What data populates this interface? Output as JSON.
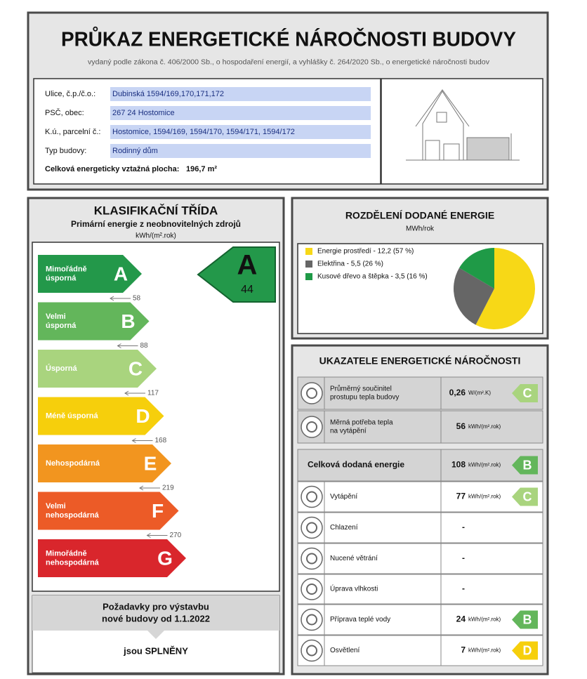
{
  "header": {
    "title": "PRŮKAZ ENERGETICKÉ NÁROČNOSTI BUDOVY",
    "subtitle": "vydaný podle zákona č. 406/2000 Sb., o hospodaření energií, a vyhlášky č. 264/2020 Sb., o energetické náročnosti budov"
  },
  "address": {
    "rows": [
      {
        "label": "Ulice, č.p./č.o.:",
        "value": "Dubinská 1594/169,170,171,172"
      },
      {
        "label": "PSČ, obec:",
        "value": "267 24 Hostomice"
      },
      {
        "label": "K.ú., parcelní č.:",
        "value": "Hostomice, 1594/169, 1594/170, 1594/171, 1594/172"
      },
      {
        "label": "Typ budovy:",
        "value": "Rodinný dům"
      }
    ],
    "area_label": "Celková energeticky vztažná plocha:",
    "area_value": "196,7 m²"
  },
  "classification": {
    "title": "KLASIFIKAČNÍ TŘÍDA",
    "subtitle": "Primární energie z neobnovitelných zdrojů",
    "unit": "kWh/(m².rok)",
    "classes": [
      {
        "letter": "A",
        "label": [
          "Mimořádně",
          "úsporná"
        ],
        "threshold": "58",
        "color": "#23984a"
      },
      {
        "letter": "B",
        "label": [
          "Velmi",
          "úsporná"
        ],
        "threshold": "88",
        "color": "#63b65b"
      },
      {
        "letter": "C",
        "label": [
          "Úsporná"
        ],
        "threshold": "117",
        "color": "#a9d47e"
      },
      {
        "letter": "D",
        "label": [
          "Méně úsporná"
        ],
        "threshold": "168",
        "color": "#f6cf0c"
      },
      {
        "letter": "E",
        "label": [
          "Nehospodárná"
        ],
        "threshold": "219",
        "color": "#f2951f"
      },
      {
        "letter": "F",
        "label": [
          "Velmi",
          "nehospodárná"
        ],
        "threshold": "270",
        "color": "#ec5b27"
      },
      {
        "letter": "G",
        "label": [
          "Mimořádně",
          "nehospodárná"
        ],
        "color": "#d9262c"
      }
    ],
    "result": {
      "letter": "A",
      "value": "44"
    }
  },
  "requirement": {
    "title": [
      "Požadavky pro výstavbu",
      "nové budovy od 1.1.2022"
    ],
    "status": "jsou SPLNĚNY"
  },
  "chart_data": {
    "type": "pie",
    "title": "ROZDĚLENÍ DODANÉ ENERGIE",
    "subtitle": "MWh/rok",
    "categories": [
      "Energie prostředí",
      "Elektřina",
      "Kusové dřevo a štěpka"
    ],
    "legend_labels": [
      "Energie prostředí - 12,2 (57 %)",
      "Elektřina - 5,5 (26 %)",
      "Kusové dřevo a štěpka - 3,5 (16 %)"
    ],
    "values": [
      12.2,
      5.5,
      3.5
    ],
    "value_labels": [
      "12,2",
      "5,5",
      "3,5"
    ],
    "colors": [
      "#f7d817",
      "#666666",
      "#1f9a47"
    ]
  },
  "indicators": {
    "title": "UKAZATELE ENERGETICKÉ NÁROČNOSTI",
    "rows": [
      {
        "label": [
          "Průměrný součinitel",
          "prostupu tepla budovy"
        ],
        "value": "0,26",
        "unit": "W/(m².K)",
        "class": "C"
      },
      {
        "label": [
          "Měrná potřeba tepla",
          "na vytápění"
        ],
        "value": "56",
        "unit": "kWh/(m².rok)"
      },
      {
        "label": [
          "Celková dodaná energie"
        ],
        "value": "108",
        "unit": "kWh/(m².rok)",
        "class": "B"
      },
      {
        "label": [
          "Vytápění"
        ],
        "value": "77",
        "unit": "kWh/(m².rok)",
        "class": "C"
      },
      {
        "label": [
          "Chlazení"
        ],
        "value": "-"
      },
      {
        "label": [
          "Nucené větrání"
        ],
        "value": "-"
      },
      {
        "label": [
          "Úprava vlhkosti"
        ],
        "value": "-"
      },
      {
        "label": [
          "Příprava teplé vody"
        ],
        "value": "24",
        "unit": "kWh/(m².rok)",
        "class": "B"
      },
      {
        "label": [
          "Osvětlení"
        ],
        "value": "7",
        "unit": "kWh/(m².rok)",
        "class": "D"
      }
    ]
  }
}
